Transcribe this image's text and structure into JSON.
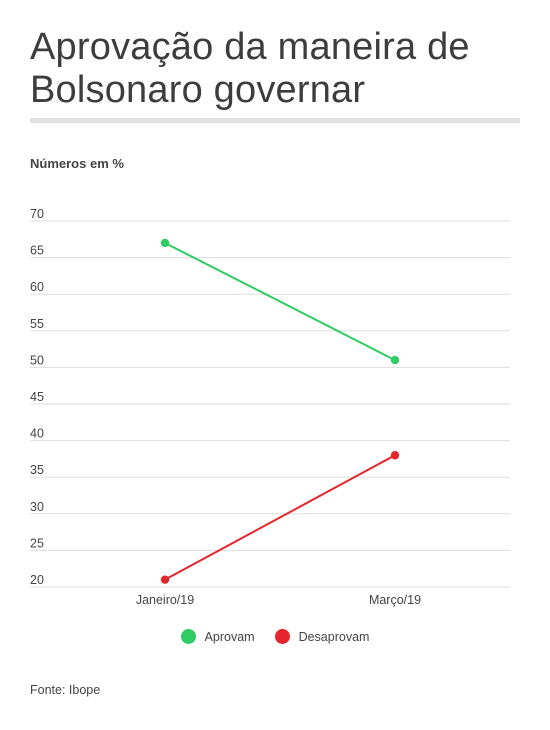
{
  "header": {
    "title": "Aprovação da maneira de Bolsonaro governar",
    "subtitle": "Números em %"
  },
  "footer": {
    "source": "Fonte: Ibope"
  },
  "colors": {
    "aprovam": "#2ecc63",
    "desaprovam": "#e3262b",
    "grid": "#dddddd",
    "rule": "#e0e0e0"
  },
  "chart_data": {
    "type": "line",
    "title": "Aprovação da maneira de Bolsonaro governar",
    "subtitle": "Números em %",
    "x": [
      "Janeiro/19",
      "Março/19"
    ],
    "series": [
      {
        "name": "Aprovam",
        "values": [
          67,
          51
        ],
        "color": "#2ecc63"
      },
      {
        "name": "Desaprovam",
        "values": [
          21,
          38
        ],
        "color": "#e3262b"
      }
    ],
    "yticks": [
      20,
      25,
      30,
      35,
      40,
      45,
      50,
      55,
      60,
      65,
      70
    ],
    "ylim": [
      20,
      70
    ],
    "grid": true,
    "legend_position": "bottom",
    "source": "Fonte: Ibope"
  }
}
